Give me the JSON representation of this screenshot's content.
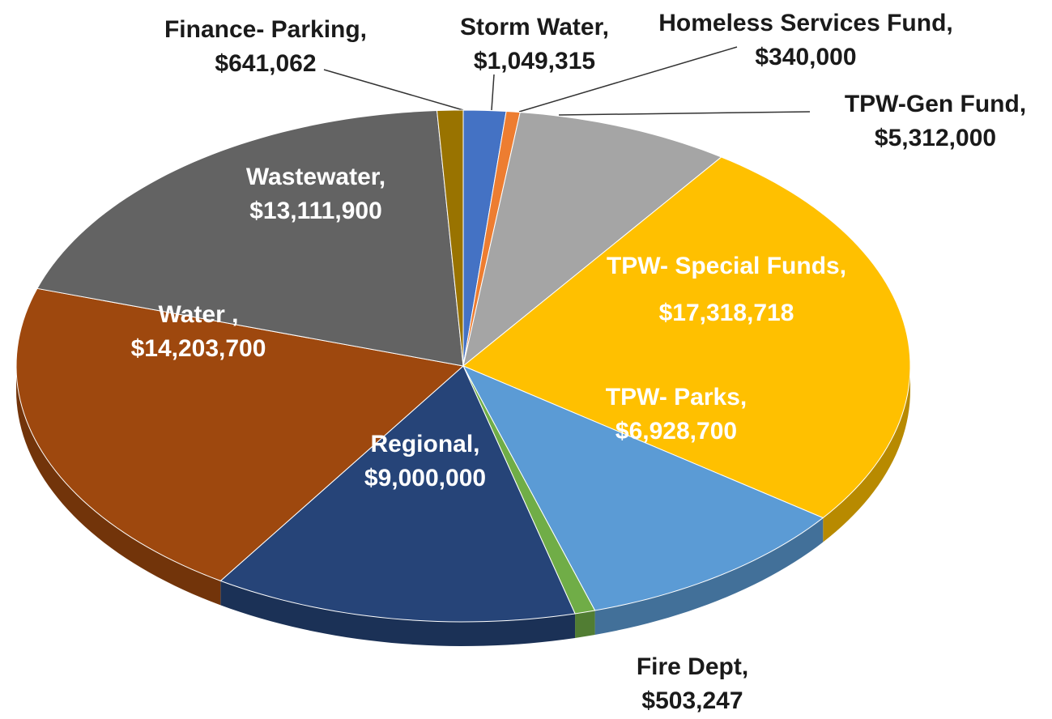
{
  "chart_data": {
    "type": "pie",
    "categories": [
      "Storm Water,",
      "Homeless Services Fund,",
      "TPW-Gen Fund,",
      "TPW- Special Funds,",
      "TPW- Parks,",
      "Fire Dept,",
      "Regional,",
      "Water ,",
      "Wastewater,",
      "Finance- Parking,"
    ],
    "values": [
      1049315,
      340000,
      5312000,
      17318718,
      6928700,
      503247,
      9000000,
      14203700,
      13111900,
      641062
    ],
    "value_labels": [
      "$1,049,315",
      "$340,000",
      "$5,312,000",
      "$17,318,718",
      "$6,928,700",
      "$503,247",
      "$9,000,000",
      "$14,203,700",
      "$13,111,900",
      "$641,062"
    ],
    "colors": [
      "#4472c4",
      "#ed7d31",
      "#a5a5a5",
      "#ffc000",
      "#5b9bd5",
      "#70ad47",
      "#264478",
      "#9e480e",
      "#636363",
      "#997300"
    ]
  }
}
